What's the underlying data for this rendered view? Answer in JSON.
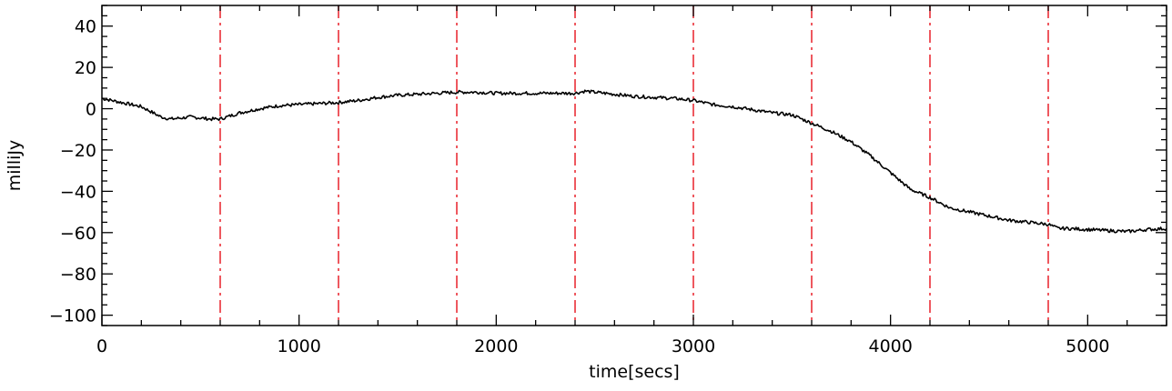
{
  "chart_data": {
    "type": "line",
    "title": "",
    "xlabel": "time[secs]",
    "ylabel": "milliJy",
    "xlim": [
      0,
      5400
    ],
    "ylim": [
      -105,
      50
    ],
    "x_ticks": [
      0,
      1000,
      2000,
      3000,
      4000,
      5000
    ],
    "x_tick_labels": [
      "0",
      "1000",
      "2000",
      "3000",
      "4000",
      "5000"
    ],
    "y_ticks": [
      40,
      20,
      0,
      -20,
      -40,
      -60,
      -80,
      -100
    ],
    "y_tick_labels": [
      "40",
      "20",
      "0",
      "−20",
      "−40",
      "−60",
      "−80",
      "−100"
    ],
    "grid": false,
    "series": [
      {
        "color": "#000000",
        "x": [
          0,
          100,
          200,
          300,
          350,
          450,
          550,
          600,
          700,
          800,
          900,
          1000,
          1100,
          1200,
          1300,
          1400,
          1500,
          1600,
          1700,
          1800,
          1900,
          2000,
          2100,
          2200,
          2300,
          2400,
          2450,
          2500,
          2600,
          2700,
          2800,
          2900,
          3000,
          3100,
          3200,
          3300,
          3400,
          3500,
          3600,
          3700,
          3800,
          3900,
          4000,
          4100,
          4200,
          4300,
          4400,
          4500,
          4600,
          4700,
          4800,
          4850,
          4900,
          5000,
          5100,
          5200,
          5300,
          5400
        ],
        "y": [
          5,
          3,
          1,
          -4,
          -5,
          -4,
          -5,
          -5,
          -2,
          0,
          1.5,
          2,
          2.5,
          3,
          4,
          5.5,
          6.5,
          7,
          7.5,
          8,
          8,
          7.5,
          7.5,
          7.5,
          7.5,
          7.5,
          8.5,
          8,
          7,
          6,
          5.5,
          5,
          4,
          2,
          1,
          -0.5,
          -2,
          -3,
          -7,
          -11,
          -16,
          -23,
          -31,
          -39,
          -43,
          -48,
          -50,
          -52,
          -54,
          -55,
          -56,
          -58,
          -58,
          -58.5,
          -59,
          -59.5,
          -58.5,
          -58
        ]
      }
    ],
    "vlines": {
      "color": "#e8202a",
      "style": "dash-dot",
      "x": [
        600,
        1200,
        1800,
        2400,
        3000,
        3600,
        4200,
        4800
      ]
    }
  }
}
